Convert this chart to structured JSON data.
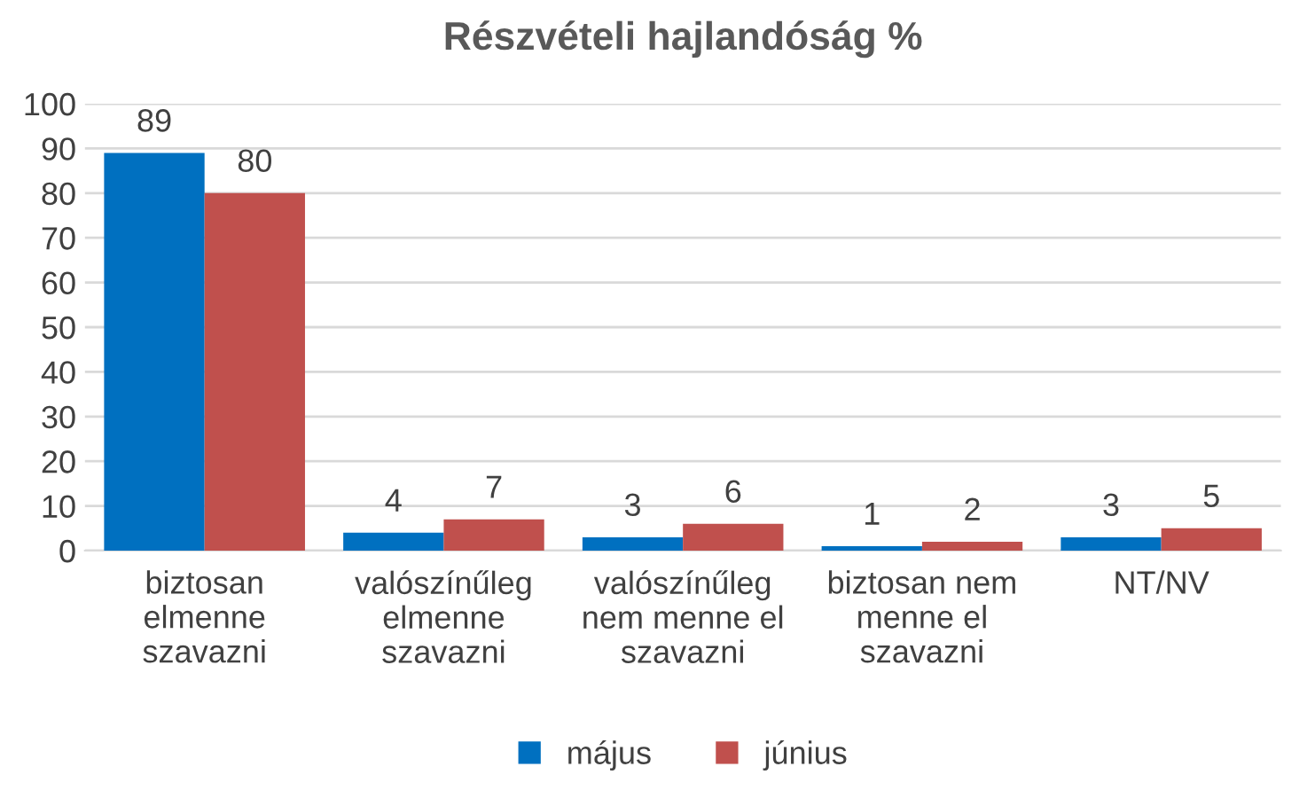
{
  "chart_data": {
    "type": "bar",
    "title": "Részvételi hajlandóság %",
    "categories": [
      "biztosan\nelmenne\nszavazni",
      "valószínűleg\nelmenne\nszavazni",
      "valószínűleg\nnem menne el\nszavazni",
      "biztosan nem\nmenne el\nszavazni",
      "NT/NV"
    ],
    "series": [
      {
        "name": "május",
        "color": "#0070c0",
        "values": [
          89,
          4,
          3,
          1,
          3
        ]
      },
      {
        "name": "június",
        "color": "#c0504d",
        "values": [
          80,
          7,
          6,
          2,
          5
        ]
      }
    ],
    "ylim": [
      0,
      100
    ],
    "yticks": [
      0,
      10,
      20,
      30,
      40,
      50,
      60,
      70,
      80,
      90,
      100
    ],
    "grid": "y",
    "legend": "bottom",
    "data_labels": true
  }
}
